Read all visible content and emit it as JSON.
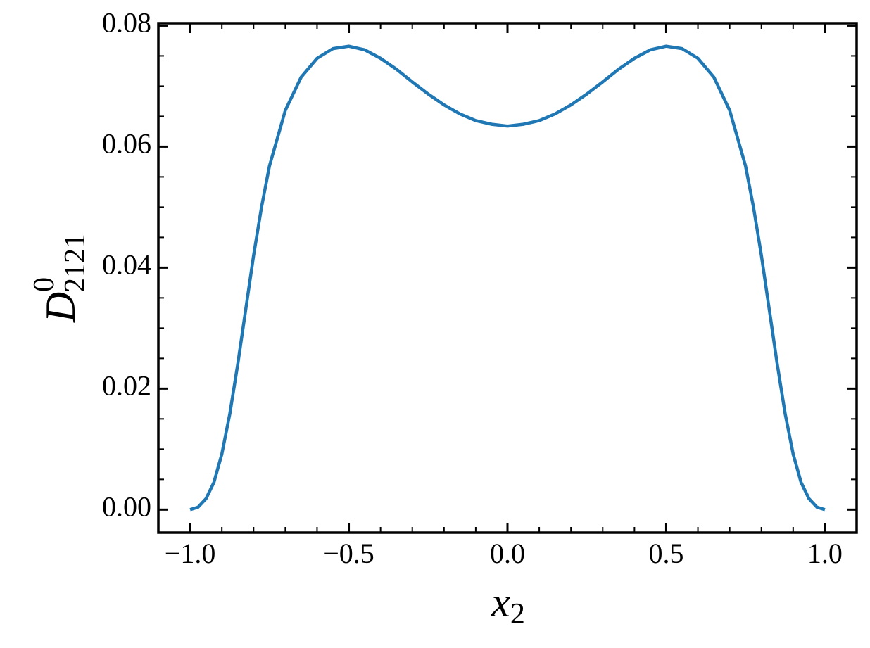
{
  "chart_data": {
    "type": "line",
    "xlabel": {
      "base": "x",
      "sub": "2"
    },
    "ylabel": {
      "base": "D",
      "sup": "0",
      "sub": "2121"
    },
    "x": [
      -1,
      -0.975,
      -0.95,
      -0.925,
      -0.9,
      -0.875,
      -0.85,
      -0.825,
      -0.8,
      -0.775,
      -0.75,
      -0.7,
      -0.65,
      -0.6,
      -0.55,
      -0.5,
      -0.45,
      -0.4,
      -0.35,
      -0.3,
      -0.25,
      -0.2,
      -0.15,
      -0.1,
      -0.05,
      0,
      0.05,
      0.1,
      0.15,
      0.2,
      0.25,
      0.3,
      0.35,
      0.4,
      0.45,
      0.5,
      0.55,
      0.6,
      0.65,
      0.7,
      0.75,
      0.775,
      0.8,
      0.825,
      0.85,
      0.875,
      0.9,
      0.925,
      0.95,
      0.975,
      1
    ],
    "series": [
      {
        "color": "#1f77b4",
        "values": [
          0,
          0.0004,
          0.0018,
          0.0045,
          0.0092,
          0.0158,
          0.024,
          0.033,
          0.042,
          0.05,
          0.0568,
          0.066,
          0.0715,
          0.0746,
          0.0762,
          0.0766,
          0.076,
          0.0746,
          0.0728,
          0.0707,
          0.0687,
          0.0669,
          0.0654,
          0.0643,
          0.0637,
          0.0634,
          0.0637,
          0.0643,
          0.0654,
          0.0669,
          0.0687,
          0.0707,
          0.0728,
          0.0746,
          0.076,
          0.0766,
          0.0762,
          0.0746,
          0.0715,
          0.066,
          0.0568,
          0.05,
          0.042,
          0.033,
          0.024,
          0.0158,
          0.0092,
          0.0045,
          0.0018,
          0.0004,
          0
        ]
      }
    ],
    "xlim": [
      -1.1,
      1.1
    ],
    "ylim": [
      -0.0038,
      0.0804
    ],
    "xticks": [
      {
        "value": -1,
        "label": "−1.0"
      },
      {
        "value": -0.5,
        "label": "−0.5"
      },
      {
        "value": 0,
        "label": "0.0"
      },
      {
        "value": 0.5,
        "label": "0.5"
      },
      {
        "value": 1,
        "label": "1.0"
      }
    ],
    "yticks": [
      {
        "value": 0,
        "label": "0.00"
      },
      {
        "value": 0.02,
        "label": "0.02"
      },
      {
        "value": 0.04,
        "label": "0.04"
      },
      {
        "value": 0.06,
        "label": "0.06"
      },
      {
        "value": 0.08,
        "label": "0.08"
      }
    ],
    "xminorticks": [
      -0.9,
      -0.8,
      -0.7,
      -0.6,
      -0.4,
      -0.3,
      -0.2,
      -0.1,
      0.1,
      0.2,
      0.3,
      0.4,
      0.6,
      0.7,
      0.8,
      0.9
    ],
    "yminorticks": [
      0.005,
      0.01,
      0.015,
      0.025,
      0.03,
      0.035,
      0.045,
      0.05,
      0.055,
      0.065,
      0.07,
      0.075
    ]
  }
}
